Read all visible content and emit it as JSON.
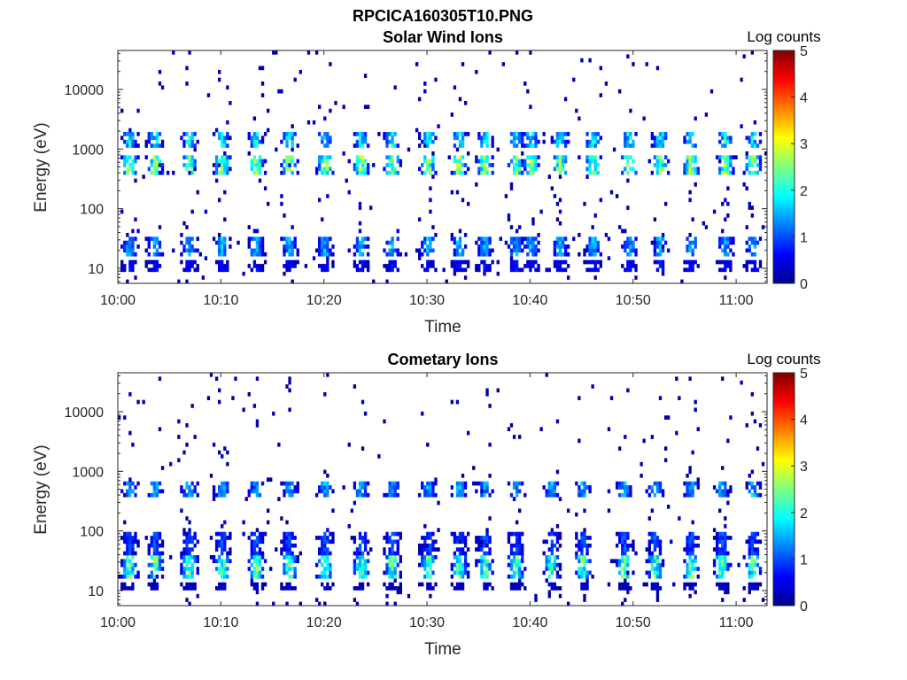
{
  "figure": {
    "filename_title": "RPCICA160305T10.PNG"
  },
  "colormap": {
    "name": "jet",
    "stops": [
      "#00008f",
      "#0000ff",
      "#0080ff",
      "#00ffff",
      "#80ff80",
      "#ffff00",
      "#ff8000",
      "#ff0000",
      "#800000"
    ]
  },
  "chart_data": [
    {
      "type": "heatmap",
      "title": "Solar Wind Ions",
      "xlabel": "Time",
      "ylabel": "Energy (eV)",
      "y_scale": "log",
      "ylim": [
        5.6,
        45000
      ],
      "xlim": [
        "10:00",
        "11:03"
      ],
      "x_ticks": [
        "10:00",
        "10:10",
        "10:20",
        "10:30",
        "10:40",
        "10:50",
        "11:00"
      ],
      "y_ticks": [
        "10",
        "100",
        "1000",
        "10000"
      ],
      "colorbar": {
        "label": "Log counts",
        "range": [
          0,
          5
        ],
        "ticks": [
          "0",
          "1",
          "2",
          "3",
          "4",
          "5"
        ]
      },
      "burst_times_min": [
        1,
        3.5,
        6.8,
        10,
        13.3,
        16.5,
        20,
        23.5,
        26.5,
        30,
        33,
        35.5,
        38.5,
        40,
        42.8,
        46,
        49.5,
        52.5,
        55.5,
        58.8,
        61.5
      ],
      "bands": [
        {
          "energy_ev": [
            350,
            800
          ],
          "peak_log_counts": 3.2
        },
        {
          "energy_ev": [
            1000,
            1800
          ],
          "peak_log_counts": 2.2
        },
        {
          "energy_ev": [
            16,
            35
          ],
          "peak_log_counts": 1.8
        },
        {
          "energy_ev": [
            9,
            13
          ],
          "peak_log_counts": 0.8
        }
      ],
      "background_log_counts": 0.3
    },
    {
      "type": "heatmap",
      "title": "Cometary Ions",
      "xlabel": "Time",
      "ylabel": "Energy (eV)",
      "y_scale": "log",
      "ylim": [
        5.6,
        45000
      ],
      "xlim": [
        "10:00",
        "11:03"
      ],
      "x_ticks": [
        "10:00",
        "10:10",
        "10:20",
        "10:30",
        "10:40",
        "10:50",
        "11:00"
      ],
      "y_ticks": [
        "10",
        "100",
        "1000",
        "10000"
      ],
      "colorbar": {
        "label": "Log counts",
        "range": [
          0,
          5
        ],
        "ticks": [
          "0",
          "1",
          "2",
          "3",
          "4",
          "5"
        ]
      },
      "burst_times_min": [
        1,
        3.5,
        6.8,
        10,
        13.3,
        16.5,
        20,
        23.5,
        26.5,
        30,
        33,
        35.5,
        38.5,
        42,
        45,
        49,
        52,
        55.5,
        58.5,
        61.5
      ],
      "bands": [
        {
          "energy_ev": [
            15,
            40
          ],
          "peak_log_counts": 2.8
        },
        {
          "energy_ev": [
            40,
            100
          ],
          "peak_log_counts": 1.2
        },
        {
          "energy_ev": [
            400,
            700
          ],
          "peak_log_counts": 1.8
        },
        {
          "energy_ev": [
            10,
            13
          ],
          "peak_log_counts": 0.4
        }
      ],
      "background_log_counts": 0.2
    }
  ]
}
